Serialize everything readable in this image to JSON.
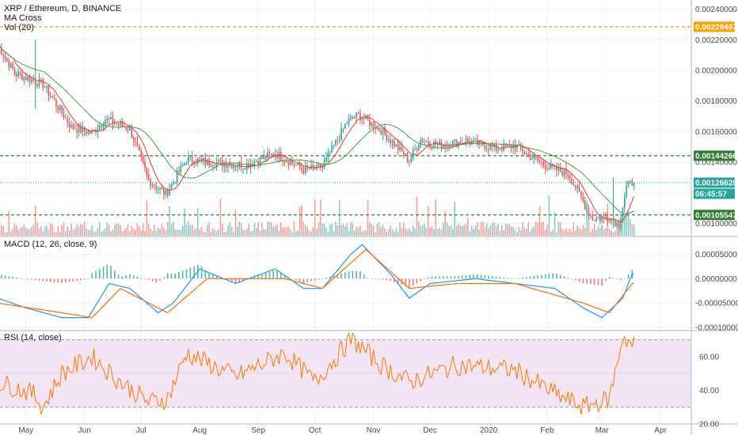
{
  "legend": {
    "symbol": "XRP / Ethereum, D, BINANCE",
    "ma": "MA Cross",
    "vol": "Vol (20)",
    "macd": "MACD (12, 26, close, 9)",
    "rsi": "RSI (14, close)"
  },
  "colors": {
    "up": "#26a69a",
    "down": "#ef5350",
    "maFast": "#e53935",
    "maSlow": "#43a047",
    "macdLine": "#2196f3",
    "signalLine": "#ff6d00",
    "rsiLine": "#f57c00",
    "rsiBand": "#f3e5f5",
    "orangeLevel": "#ffa000",
    "greenLevel": "#2e7d32",
    "lastPrice": "#26a69a"
  },
  "price_labels": {
    "orange": "0.00228497",
    "upper_green": "0.00144266",
    "last": "0.00126628",
    "countdown": "06:45:57",
    "lower_green": "0.00105547"
  },
  "chart_data": [
    {
      "type": "candlestick",
      "title": "XRP / Ethereum, D, BINANCE",
      "ylim": [
        0.00092,
        0.00246
      ],
      "y_ticks": [
        "0.00240000",
        "0.00220000",
        "0.00200000",
        "0.00180000",
        "0.00160000",
        "0.00140000",
        "0.00100000"
      ],
      "x_ticks": [
        "May",
        "Jun",
        "Jul",
        "Aug",
        "Sep",
        "Oct",
        "Nov",
        "Dec",
        "2020",
        "Feb",
        "Mar",
        "Apr"
      ],
      "horizontal_levels": [
        0.00228497,
        0.00144266,
        0.00105547
      ],
      "last_price": 0.00126628,
      "close_anchors": [
        {
          "x": "Apr 16",
          "y": 0.00217
        },
        {
          "x": "Apr 25",
          "y": 0.00198
        },
        {
          "x": "May 10",
          "y": 0.00191
        },
        {
          "x": "May 25",
          "y": 0.00163
        },
        {
          "x": "Jun 5",
          "y": 0.00159
        },
        {
          "x": "Jun 12",
          "y": 0.00168
        },
        {
          "x": "Jun 25",
          "y": 0.00162
        },
        {
          "x": "Jul 5",
          "y": 0.00128
        },
        {
          "x": "Jul 14",
          "y": 0.00119
        },
        {
          "x": "Jul 25",
          "y": 0.00142
        },
        {
          "x": "Aug 5",
          "y": 0.0014
        },
        {
          "x": "Aug 25",
          "y": 0.00138
        },
        {
          "x": "Sep 10",
          "y": 0.00146
        },
        {
          "x": "Sep 25",
          "y": 0.00135
        },
        {
          "x": "Oct 5",
          "y": 0.00137
        },
        {
          "x": "Oct 18",
          "y": 0.00166
        },
        {
          "x": "Oct 24",
          "y": 0.00171
        },
        {
          "x": "Nov 5",
          "y": 0.00161
        },
        {
          "x": "Nov 20",
          "y": 0.00141
        },
        {
          "x": "Nov 26",
          "y": 0.00155
        },
        {
          "x": "Dec 5",
          "y": 0.00151
        },
        {
          "x": "Dec 20",
          "y": 0.00154
        },
        {
          "x": "Jan 5",
          "y": 0.00149
        },
        {
          "x": "Jan 15",
          "y": 0.00151
        },
        {
          "x": "Jan 25",
          "y": 0.00142
        },
        {
          "x": "Feb 5",
          "y": 0.00135
        },
        {
          "x": "Feb 12",
          "y": 0.00133
        },
        {
          "x": "Feb 25",
          "y": 0.00103
        },
        {
          "x": "Mar 5",
          "y": 0.00104
        },
        {
          "x": "Mar 10",
          "y": 0.00099
        },
        {
          "x": "Mar 14",
          "y": 0.00124
        },
        {
          "x": "Mar 17",
          "y": 0.00126628
        }
      ]
    },
    {
      "type": "line",
      "title": "MACD (12, 26, close, 9)",
      "ylim": [
        -0.000105,
        8.5e-05
      ],
      "y_ticks": [
        "0.00005000",
        "0.00000000",
        "-0.00005000",
        "-0.00010000"
      ],
      "series": [
        {
          "name": "MACD",
          "values": [
            {
              "x": "Apr 16",
              "y": -4e-05
            },
            {
              "x": "May 1",
              "y": -6e-05
            },
            {
              "x": "May 20",
              "y": -8e-05
            },
            {
              "x": "Jun 3",
              "y": -8e-05
            },
            {
              "x": "Jun 14",
              "y": -1e-05
            },
            {
              "x": "Jun 25",
              "y": -2e-05
            },
            {
              "x": "Jul 10",
              "y": -7e-05
            },
            {
              "x": "Jul 18",
              "y": -5e-05
            },
            {
              "x": "Aug 1",
              "y": 2e-05
            },
            {
              "x": "Aug 20",
              "y": -1e-05
            },
            {
              "x": "Sep 10",
              "y": 2e-05
            },
            {
              "x": "Sep 25",
              "y": -2e-05
            },
            {
              "x": "Oct 5",
              "y": -2e-05
            },
            {
              "x": "Oct 20",
              "y": 5e-05
            },
            {
              "x": "Oct 26",
              "y": 7e-05
            },
            {
              "x": "Nov 10",
              "y": 1e-05
            },
            {
              "x": "Nov 20",
              "y": -4e-05
            },
            {
              "x": "Dec 1",
              "y": -1e-05
            },
            {
              "x": "Dec 25",
              "y": 0.0
            },
            {
              "x": "Jan 15",
              "y": -1e-05
            },
            {
              "x": "Feb 5",
              "y": -2e-05
            },
            {
              "x": "Feb 20",
              "y": -6e-05
            },
            {
              "x": "Mar 1",
              "y": -8e-05
            },
            {
              "x": "Mar 12",
              "y": -4e-05
            },
            {
              "x": "Mar 17",
              "y": 1e-05
            }
          ]
        },
        {
          "name": "Signal",
          "values": [
            {
              "x": "Apr 16",
              "y": -5e-05
            },
            {
              "x": "May 20",
              "y": -7e-05
            },
            {
              "x": "Jun 5",
              "y": -8e-05
            },
            {
              "x": "Jun 20",
              "y": -2e-05
            },
            {
              "x": "Jul 15",
              "y": -7e-05
            },
            {
              "x": "Aug 5",
              "y": 0.0
            },
            {
              "x": "Sep 15",
              "y": 0.0
            },
            {
              "x": "Oct 5",
              "y": -2e-05
            },
            {
              "x": "Oct 28",
              "y": 6e-05
            },
            {
              "x": "Nov 20",
              "y": -2e-05
            },
            {
              "x": "Dec 15",
              "y": -1e-05
            },
            {
              "x": "Jan 15",
              "y": -1e-05
            },
            {
              "x": "Feb 20",
              "y": -5e-05
            },
            {
              "x": "Mar 5",
              "y": -7e-05
            },
            {
              "x": "Mar 17",
              "y": -1e-05
            }
          ]
        }
      ]
    },
    {
      "type": "line",
      "title": "RSI (14, close)",
      "ylim": [
        20,
        75
      ],
      "y_ticks": [
        "60.00",
        "40.00",
        "20.00"
      ],
      "band": [
        30,
        70
      ],
      "series": [
        {
          "name": "RSI",
          "values": [
            {
              "x": "Apr 16",
              "y": 45
            },
            {
              "x": "May 5",
              "y": 38
            },
            {
              "x": "May 10",
              "y": 30
            },
            {
              "x": "May 20",
              "y": 50
            },
            {
              "x": "Jun 5",
              "y": 60
            },
            {
              "x": "Jun 20",
              "y": 45
            },
            {
              "x": "Jul 5",
              "y": 33
            },
            {
              "x": "Jul 15",
              "y": 35
            },
            {
              "x": "Jul 25",
              "y": 62
            },
            {
              "x": "Aug 20",
              "y": 48
            },
            {
              "x": "Sep 15",
              "y": 62
            },
            {
              "x": "Oct 1",
              "y": 45
            },
            {
              "x": "Oct 20",
              "y": 70
            },
            {
              "x": "Oct 25",
              "y": 66
            },
            {
              "x": "Nov 5",
              "y": 55
            },
            {
              "x": "Nov 20",
              "y": 45
            },
            {
              "x": "Dec 15",
              "y": 55
            },
            {
              "x": "Jan 15",
              "y": 52
            },
            {
              "x": "Feb 5",
              "y": 38
            },
            {
              "x": "Feb 20",
              "y": 30
            },
            {
              "x": "Mar 5",
              "y": 35
            },
            {
              "x": "Mar 12",
              "y": 72
            },
            {
              "x": "Mar 17",
              "y": 67
            }
          ]
        }
      ]
    }
  ]
}
